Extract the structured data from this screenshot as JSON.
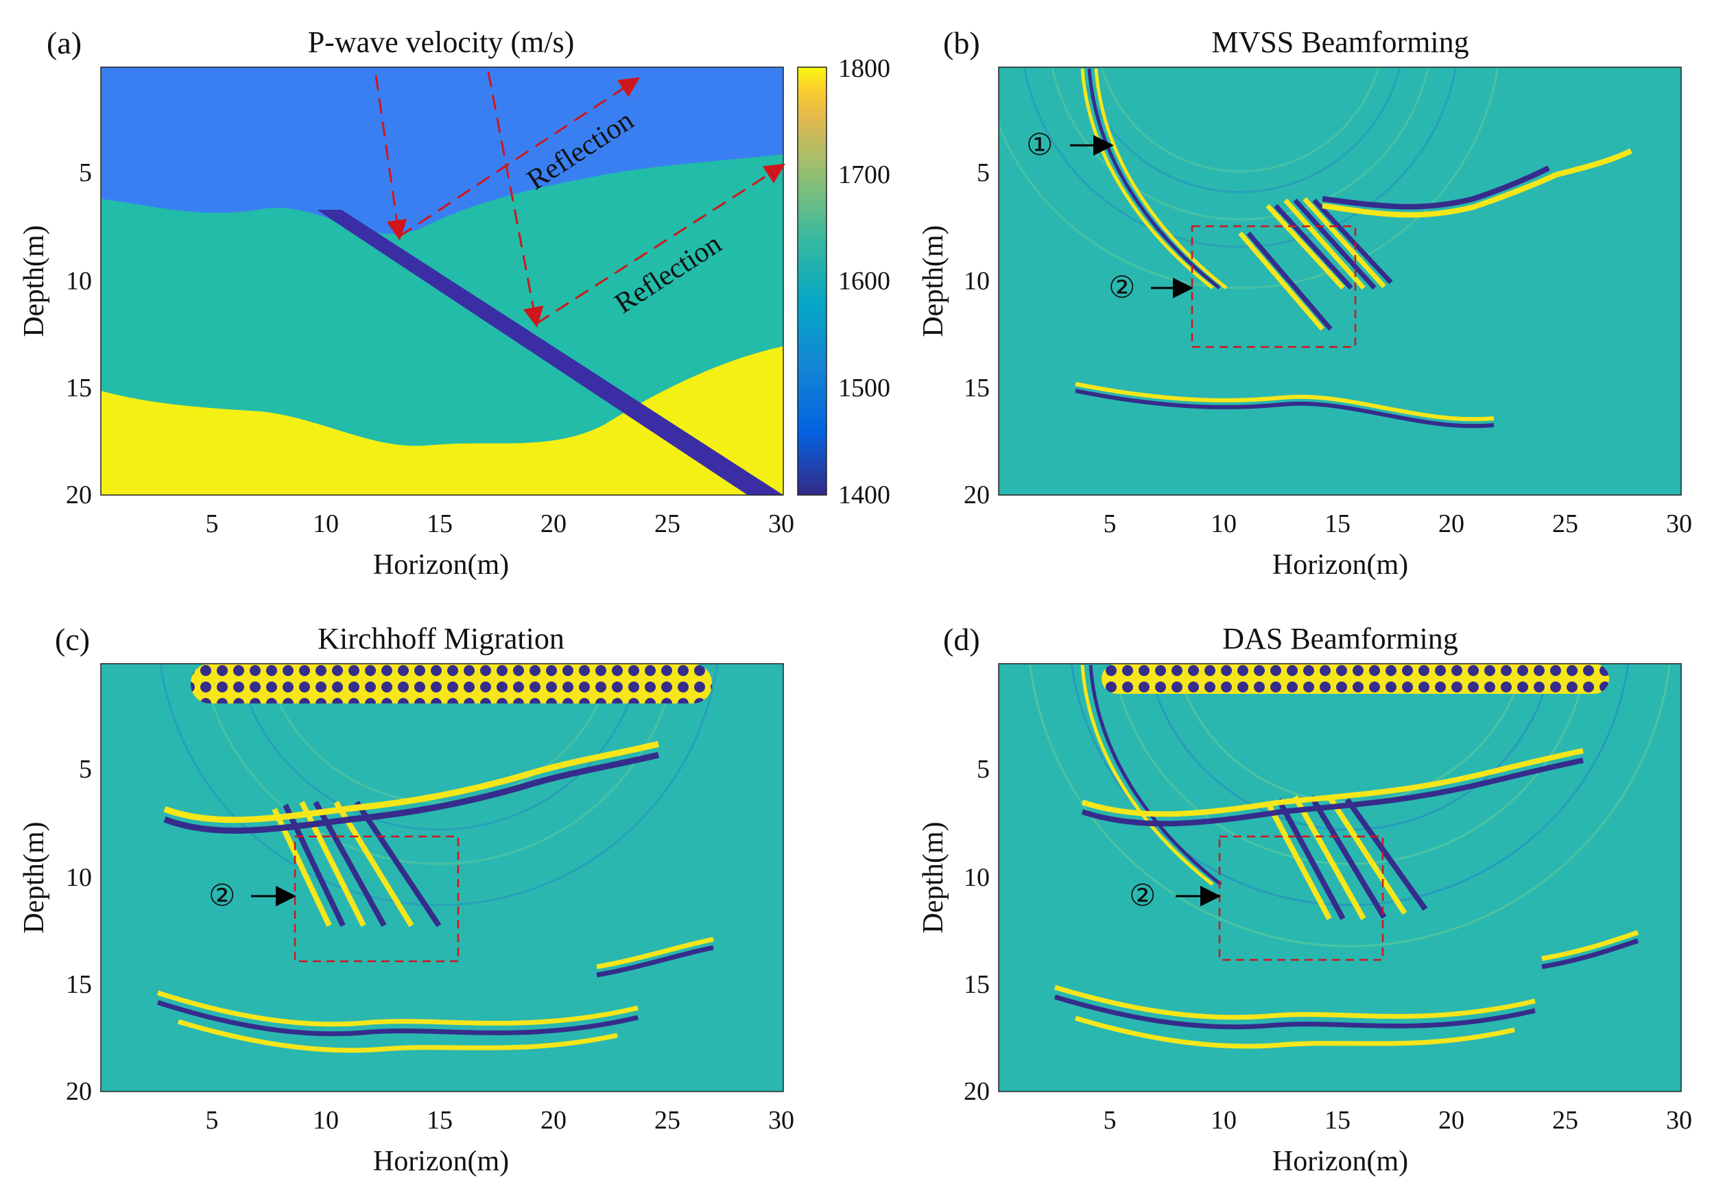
{
  "figure": {
    "panels": [
      {
        "label": "(a)",
        "title": "P-wave velocity (m/s)",
        "xlabel": "Horizon(m)",
        "ylabel": "Depth(m)",
        "xticks": [
          "5",
          "10",
          "15",
          "20",
          "25",
          "30"
        ],
        "yticks": [
          "5",
          "10",
          "15",
          "20"
        ],
        "colorbar_ticks": [
          "1800",
          "1700",
          "1600",
          "1500",
          "1400"
        ],
        "annotations": [
          "Reflection",
          "Reflection"
        ]
      },
      {
        "label": "(b)",
        "title": "MVSS Beamforming",
        "xlabel": "Horizon(m)",
        "ylabel": "Depth(m)",
        "xticks": [
          "5",
          "10",
          "15",
          "20",
          "25",
          "30"
        ],
        "yticks": [
          "5",
          "10",
          "15",
          "20"
        ],
        "markers": [
          "①",
          "②"
        ]
      },
      {
        "label": "(c)",
        "title": "Kirchhoff Migration",
        "xlabel": "Horizon(m)",
        "ylabel": "Depth(m)",
        "xticks": [
          "5",
          "10",
          "15",
          "20",
          "25",
          "30"
        ],
        "yticks": [
          "5",
          "10",
          "15",
          "20"
        ],
        "markers": [
          "②"
        ]
      },
      {
        "label": "(d)",
        "title": "DAS Beamforming",
        "xlabel": "Horizon(m)",
        "ylabel": "Depth(m)",
        "xticks": [
          "5",
          "10",
          "15",
          "20",
          "25",
          "30"
        ],
        "yticks": [
          "5",
          "10",
          "15",
          "20"
        ],
        "markers": [
          "②"
        ]
      }
    ],
    "colors": {
      "layer_top": "#3a7ff2",
      "layer_middle": "#22bca9",
      "layer_bottom": "#f5f014",
      "fault": "#3b2ea5",
      "background_field": "#2ab7b0",
      "positive_wave": "#f7e61a",
      "negative_wave": "#362c8c",
      "dashed_annotations": "#d0161c"
    },
    "colormap": "parula",
    "colorbar_range": [
      1400,
      1800
    ]
  }
}
